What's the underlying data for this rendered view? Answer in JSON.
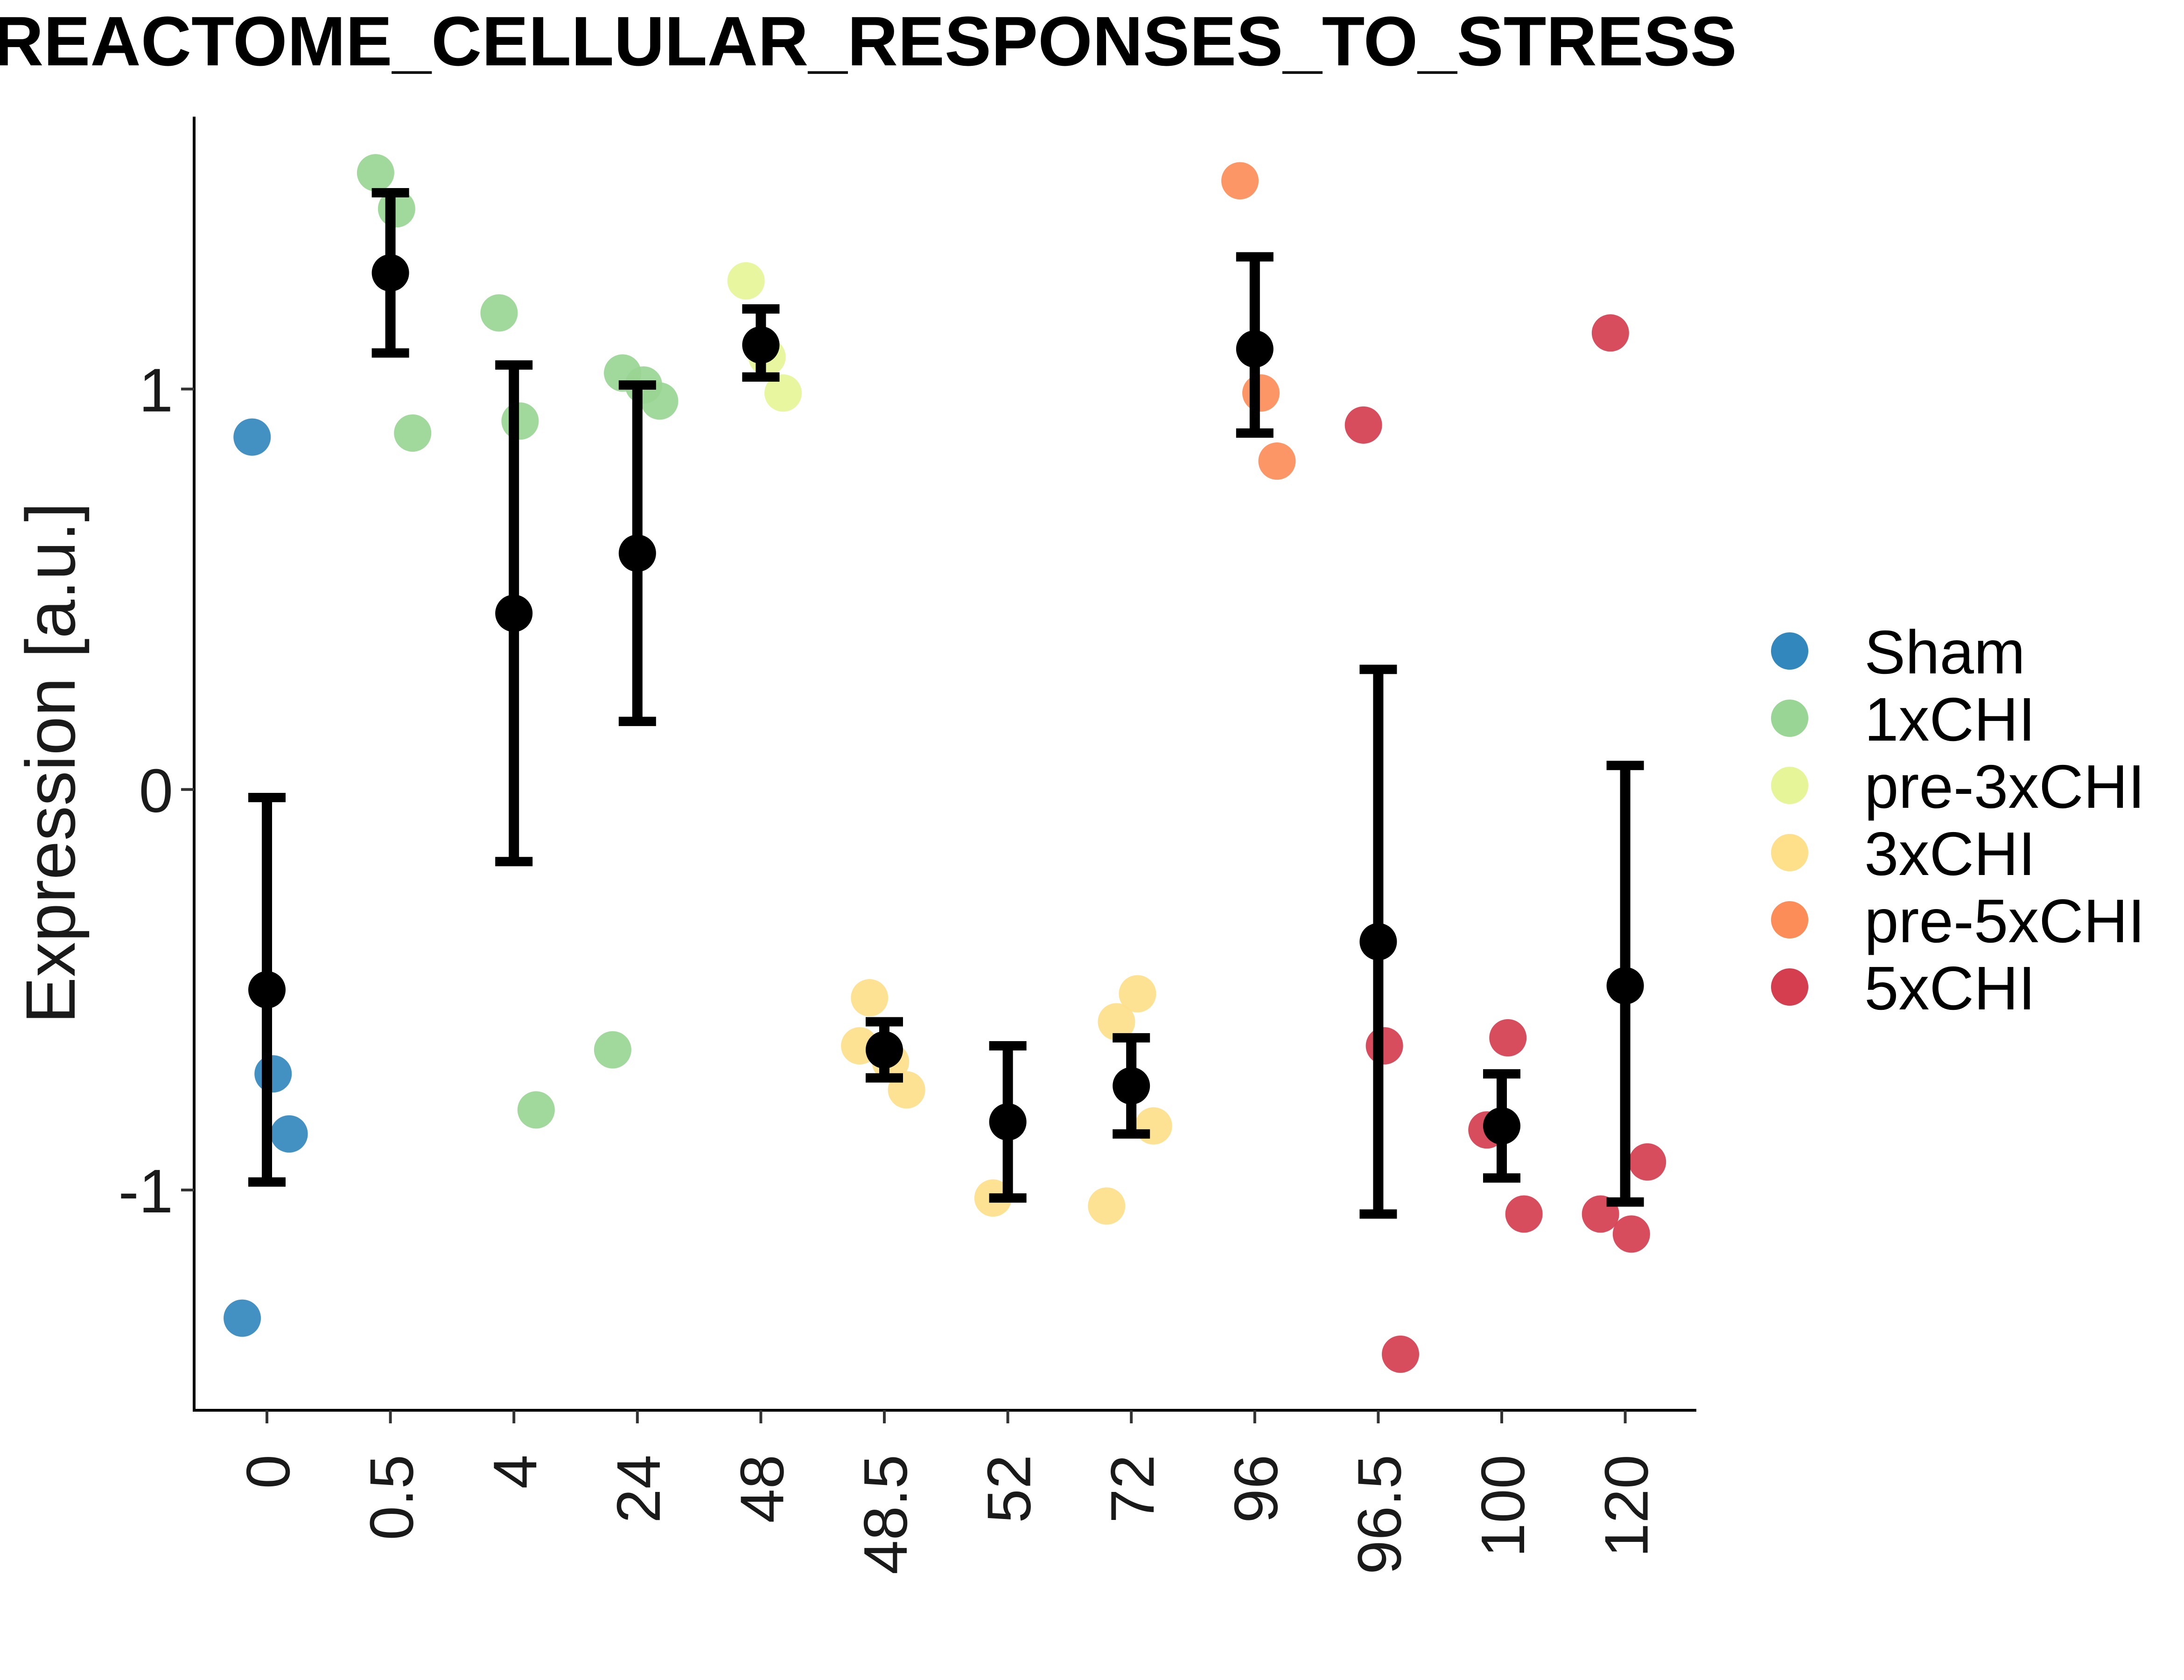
{
  "chart_data": {
    "type": "scatter",
    "title": "REACTOME_CELLULAR_RESPONSES_TO_STRESS",
    "xlabel": "",
    "ylabel": "Expression [a.u.]",
    "categories": [
      "0",
      "0.5",
      "4",
      "24",
      "48",
      "48.5",
      "52",
      "72",
      "96",
      "96.5",
      "100",
      "120"
    ],
    "y_ticks": [
      "-1",
      "0",
      "1"
    ],
    "ylim": [
      -1.55,
      1.68
    ],
    "grid": false,
    "legend_position": "right",
    "groups": [
      {
        "name": "Sham",
        "color": "#3288BD"
      },
      {
        "name": "1xCHI",
        "color": "#99D594"
      },
      {
        "name": "pre-3xCHI",
        "color": "#E6F598"
      },
      {
        "name": "3xCHI",
        "color": "#FEE08B"
      },
      {
        "name": "pre-5xCHI",
        "color": "#FC8D59"
      },
      {
        "name": "5xCHI",
        "color": "#D53E4F"
      }
    ],
    "points": [
      {
        "category": "0",
        "group": "Sham",
        "y": 0.88
      },
      {
        "category": "0",
        "group": "Sham",
        "y": -0.71
      },
      {
        "category": "0",
        "group": "Sham",
        "y": -0.86
      },
      {
        "category": "0",
        "group": "Sham",
        "y": -1.32
      },
      {
        "category": "0.5",
        "group": "1xCHI",
        "y": 1.54
      },
      {
        "category": "0.5",
        "group": "1xCHI",
        "y": 1.45
      },
      {
        "category": "0.5",
        "group": "1xCHI",
        "y": 0.89
      },
      {
        "category": "4",
        "group": "1xCHI",
        "y": 1.19
      },
      {
        "category": "4",
        "group": "1xCHI",
        "y": 0.92
      },
      {
        "category": "4",
        "group": "1xCHI",
        "y": -0.8
      },
      {
        "category": "24",
        "group": "1xCHI",
        "y": 1.04
      },
      {
        "category": "24",
        "group": "1xCHI",
        "y": 1.01
      },
      {
        "category": "24",
        "group": "1xCHI",
        "y": 0.97
      },
      {
        "category": "24",
        "group": "1xCHI",
        "y": -0.65
      },
      {
        "category": "48",
        "group": "pre-3xCHI",
        "y": 1.27
      },
      {
        "category": "48",
        "group": "pre-3xCHI",
        "y": 1.08
      },
      {
        "category": "48",
        "group": "pre-3xCHI",
        "y": 0.99
      },
      {
        "category": "48.5",
        "group": "3xCHI",
        "y": -0.52
      },
      {
        "category": "48.5",
        "group": "3xCHI",
        "y": -0.68
      },
      {
        "category": "48.5",
        "group": "3xCHI",
        "y": -0.75
      },
      {
        "category": "48.5",
        "group": "3xCHI",
        "y": -0.64
      },
      {
        "category": "52",
        "group": "3xCHI",
        "y": -1.02
      },
      {
        "category": "72",
        "group": "3xCHI",
        "y": -0.58
      },
      {
        "category": "72",
        "group": "3xCHI",
        "y": -0.51
      },
      {
        "category": "72",
        "group": "3xCHI",
        "y": -0.84
      },
      {
        "category": "72",
        "group": "3xCHI",
        "y": -1.04
      },
      {
        "category": "96",
        "group": "pre-5xCHI",
        "y": 1.52
      },
      {
        "category": "96",
        "group": "pre-5xCHI",
        "y": 0.99
      },
      {
        "category": "96",
        "group": "pre-5xCHI",
        "y": 0.82
      },
      {
        "category": "96.5",
        "group": "5xCHI",
        "y": 0.91
      },
      {
        "category": "96.5",
        "group": "5xCHI",
        "y": -0.64
      },
      {
        "category": "96.5",
        "group": "5xCHI",
        "y": -1.41
      },
      {
        "category": "100",
        "group": "5xCHI",
        "y": -0.85
      },
      {
        "category": "100",
        "group": "5xCHI",
        "y": -0.62
      },
      {
        "category": "100",
        "group": "5xCHI",
        "y": -1.06
      },
      {
        "category": "120",
        "group": "5xCHI",
        "y": 1.14
      },
      {
        "category": "120",
        "group": "5xCHI",
        "y": -1.11
      },
      {
        "category": "120",
        "group": "5xCHI",
        "y": -0.93
      },
      {
        "category": "120",
        "group": "5xCHI",
        "y": -1.06
      }
    ],
    "summary": [
      {
        "category": "0",
        "mean": -0.5,
        "lower": -0.98,
        "upper": -0.02
      },
      {
        "category": "0.5",
        "mean": 1.29,
        "lower": 1.09,
        "upper": 1.49
      },
      {
        "category": "4",
        "mean": 0.44,
        "lower": -0.18,
        "upper": 1.06
      },
      {
        "category": "24",
        "mean": 0.59,
        "lower": 0.17,
        "upper": 1.01
      },
      {
        "category": "48",
        "mean": 1.11,
        "lower": 1.03,
        "upper": 1.2
      },
      {
        "category": "48.5",
        "mean": -0.65,
        "lower": -0.72,
        "upper": -0.58
      },
      {
        "category": "52",
        "mean": -0.83,
        "lower": -1.02,
        "upper": -0.64
      },
      {
        "category": "72",
        "mean": -0.74,
        "lower": -0.86,
        "upper": -0.62
      },
      {
        "category": "96",
        "mean": 1.1,
        "lower": 0.89,
        "upper": 1.33
      },
      {
        "category": "96.5",
        "mean": -0.38,
        "lower": -1.06,
        "upper": 0.3
      },
      {
        "category": "100",
        "mean": -0.84,
        "lower": -0.97,
        "upper": -0.71
      },
      {
        "category": "120",
        "mean": -0.49,
        "lower": -1.03,
        "upper": 0.06
      }
    ]
  }
}
